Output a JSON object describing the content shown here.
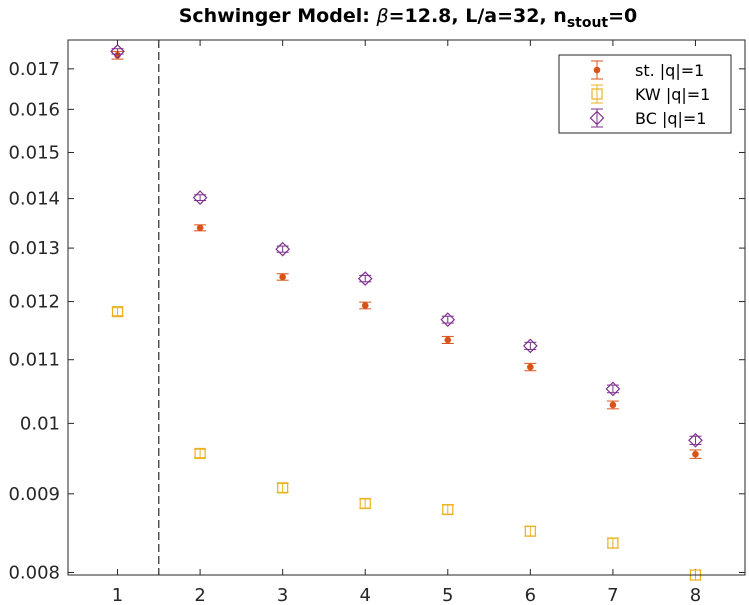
{
  "chart_data": {
    "type": "scatter",
    "title": {
      "prefix": "Schwinger Model: ",
      "beta_symbol": "β",
      "middle": "=12.8, L/a=32, n",
      "subscript": "stout",
      "suffix": "=0"
    },
    "xlabel": "",
    "ylabel": "",
    "x_ticks": [
      1,
      2,
      3,
      4,
      5,
      6,
      7,
      8
    ],
    "y_ticks": [
      "0.008",
      "0.009",
      "0.01",
      "0.011",
      "0.012",
      "0.013",
      "0.014",
      "0.015",
      "0.016",
      "0.017"
    ],
    "y_tick_values": [
      0.008,
      0.009,
      0.01,
      0.011,
      0.012,
      0.013,
      0.014,
      0.015,
      0.016,
      0.017
    ],
    "xlim": [
      0.4,
      8.6
    ],
    "ylim": [
      0.00797,
      0.01775
    ],
    "y_scale": "log",
    "separator_line_x": 1.5,
    "legend_position": "top-right",
    "series": [
      {
        "name": "st.  |q|=1",
        "marker": "dot",
        "color": "#D95319",
        "x": [
          1,
          2,
          3,
          4,
          5,
          6,
          7,
          8
        ],
        "y": [
          0.01735,
          0.0134,
          0.01245,
          0.01193,
          0.01133,
          0.01088,
          0.01028,
          0.00955
        ],
        "err": [
          0.0001,
          6e-05,
          6e-05,
          6e-05,
          6e-05,
          6e-05,
          6e-05,
          6e-05
        ]
      },
      {
        "name": "KW |q|=1",
        "marker": "square",
        "color": "#EDB120",
        "x": [
          1,
          2,
          3,
          4,
          5,
          6,
          7,
          8
        ],
        "y": [
          0.01182,
          0.00956,
          0.00908,
          0.00887,
          0.00879,
          0.00851,
          0.00836,
          0.00797
        ],
        "err": [
          7e-05,
          6e-05,
          6e-05,
          6e-05,
          6e-05,
          6e-05,
          6e-05,
          6e-05
        ]
      },
      {
        "name": "BC  |q|=1",
        "marker": "diamond",
        "color": "#7E2F8E",
        "x": [
          1,
          2,
          3,
          4,
          5,
          6,
          7,
          8
        ],
        "y": [
          0.01745,
          0.01402,
          0.01298,
          0.01242,
          0.01168,
          0.01123,
          0.01053,
          0.00975
        ],
        "err": [
          7e-05,
          6e-05,
          6e-05,
          6e-05,
          6e-05,
          6e-05,
          6e-05,
          6e-05
        ]
      }
    ]
  }
}
